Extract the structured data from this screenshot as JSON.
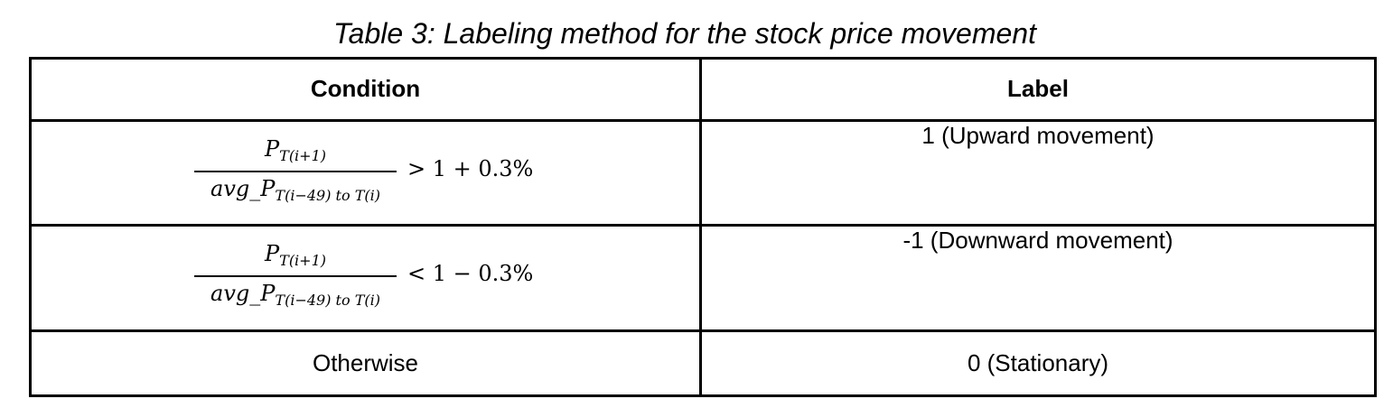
{
  "caption": "Table 3: Labeling method for the stock price movement",
  "table": {
    "headers": [
      "Condition",
      "Label"
    ],
    "rows": [
      {
        "condition": {
          "numerator_base": "P",
          "numerator_sub": "T(i+1)",
          "denominator_base": "avg_P",
          "denominator_sub": "T(i−49) to T(i)",
          "relation": "> 1 + 0.3%"
        },
        "label": "1 (Upward movement)"
      },
      {
        "condition": {
          "numerator_base": "P",
          "numerator_sub": "T(i+1)",
          "denominator_base": "avg_P",
          "denominator_sub": "T(i−49) to T(i)",
          "relation": "< 1 − 0.3%"
        },
        "label": "-1 (Downward movement)"
      },
      {
        "condition_text": "Otherwise",
        "label": "0 (Stationary)"
      }
    ]
  }
}
